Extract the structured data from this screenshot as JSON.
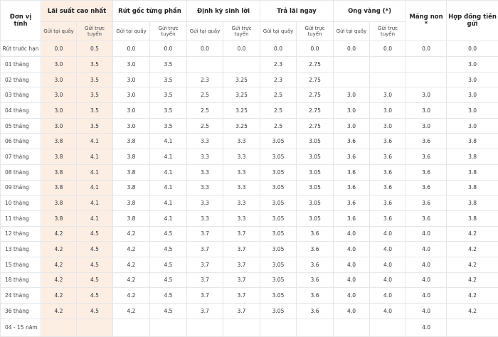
{
  "table": {
    "header": {
      "unit": "Đơn vị tính",
      "groups": [
        "Lãi suất cao nhất",
        "Rút gốc từng phần",
        "Định kỳ sinh lời",
        "Trả lãi ngay",
        "Ong vàng (*)"
      ],
      "subheaders": [
        "Gửi tại quầy",
        "Gửi trực tuyến"
      ],
      "single": [
        "Măng non *",
        "Hợp đồng tiền gửi"
      ]
    },
    "rows": [
      {
        "label": "Rút trước hạn",
        "cells": [
          "0.0",
          "0.5",
          "0.0",
          "0.0",
          "0.0",
          "0.0",
          "0.0",
          "0.0",
          "0.0",
          "0.0",
          "0.0",
          "0.0"
        ]
      },
      {
        "label": "01 tháng",
        "cells": [
          "3.0",
          "3.5",
          "3.0",
          "3.5",
          null,
          null,
          "2.3",
          "2.75",
          null,
          null,
          null,
          "3.0"
        ]
      },
      {
        "label": "02 tháng",
        "cells": [
          "3.0",
          "3.5",
          "3.0",
          "3.5",
          "2.3",
          "3.25",
          "2.3",
          "2.75",
          null,
          null,
          null,
          "3.0"
        ]
      },
      {
        "label": "03 tháng",
        "cells": [
          "3.0",
          "3.5",
          "3.0",
          "3.5",
          "2.5",
          "3.25",
          "2.5",
          "2.75",
          "3.0",
          "3.0",
          "3.0",
          "3.0"
        ]
      },
      {
        "label": "04 tháng",
        "cells": [
          "3.0",
          "3.5",
          "3.0",
          "3.5",
          "2.5",
          "3.25",
          "2.5",
          "2.75",
          "3.0",
          "3.0",
          "3.0",
          "3.0"
        ]
      },
      {
        "label": "05 tháng",
        "cells": [
          "3.0",
          "3.5",
          "3.0",
          "3.5",
          "2.5",
          "3.25",
          "2.5",
          "2.75",
          "3.0",
          "3.0",
          "3.0",
          "3.0"
        ]
      },
      {
        "label": "06 tháng",
        "cells": [
          "3.8",
          "4.1",
          "3.8",
          "4.1",
          "3.3",
          "3.3",
          "3.05",
          "3.05",
          "3.6",
          "3.6",
          "3.6",
          "3.8"
        ]
      },
      {
        "label": "07 tháng",
        "cells": [
          "3.8",
          "4.1",
          "3.8",
          "4.1",
          "3.3",
          "3.3",
          "3.05",
          "3.05",
          "3.6",
          "3.6",
          "3.6",
          "3.8"
        ]
      },
      {
        "label": "08 tháng",
        "cells": [
          "3.8",
          "4.1",
          "3.8",
          "4.1",
          "3.3",
          "3.3",
          "3.05",
          "3.05",
          "3.6",
          "3.6",
          "3.6",
          "3.8"
        ]
      },
      {
        "label": "09 tháng",
        "cells": [
          "3.8",
          "4.1",
          "3.8",
          "4.1",
          "3.3",
          "3.3",
          "3.05",
          "3.05",
          "3.6",
          "3.6",
          "3.6",
          "3.8"
        ]
      },
      {
        "label": "10 tháng",
        "cells": [
          "3.8",
          "4.1",
          "3.8",
          "4.1",
          "3.3",
          "3.3",
          "3.05",
          "3.05",
          "3.6",
          "3.6",
          "3.6",
          "3.8"
        ]
      },
      {
        "label": "11 tháng",
        "cells": [
          "3.8",
          "4.1",
          "3.8",
          "4.1",
          "3.3",
          "3.3",
          "3.05",
          "3.05",
          "3.6",
          "3.6",
          "3.6",
          "3.8"
        ]
      },
      {
        "label": "12 tháng",
        "cells": [
          "4.2",
          "4.5",
          "4.2",
          "4.5",
          "3.7",
          "3.7",
          "3.05",
          "3.6",
          "4.0",
          "4.0",
          "4.0",
          "4.2"
        ]
      },
      {
        "label": "13 tháng",
        "cells": [
          "4.2",
          "4.5",
          "4.2",
          "4.5",
          "3.7",
          "3.7",
          "3.05",
          "3.6",
          "4.0",
          "4.0",
          "4.0",
          "4.2"
        ]
      },
      {
        "label": "15 tháng",
        "cells": [
          "4.2",
          "4.5",
          "4.2",
          "4.5",
          "3.7",
          "3.7",
          "3.05",
          "3.6",
          "4.0",
          "4.0",
          "4.0",
          "4.2"
        ]
      },
      {
        "label": "18 tháng",
        "cells": [
          "4.2",
          "4.5",
          "4.2",
          "4.5",
          "3.7",
          "3.7",
          "3.05",
          "3.6",
          "4.0",
          "4.0",
          "4.0",
          "4.2"
        ]
      },
      {
        "label": "24 tháng",
        "cells": [
          "4.2",
          "4.5",
          "4.2",
          "4.5",
          "3.7",
          "3.7",
          "3.05",
          "3.6",
          "4.0",
          "4.0",
          "4.0",
          "4.2"
        ]
      },
      {
        "label": "36 tháng",
        "cells": [
          "4.2",
          "4.5",
          "4.2",
          "4.5",
          "3.7",
          "3.7",
          "3.05",
          "3.6",
          "4.0",
          "4.0",
          "4.0",
          "4.2"
        ]
      },
      {
        "label": "04 - 15 năm",
        "cells": [
          null,
          null,
          null,
          null,
          null,
          null,
          null,
          null,
          null,
          null,
          "4.0",
          null
        ]
      }
    ]
  }
}
